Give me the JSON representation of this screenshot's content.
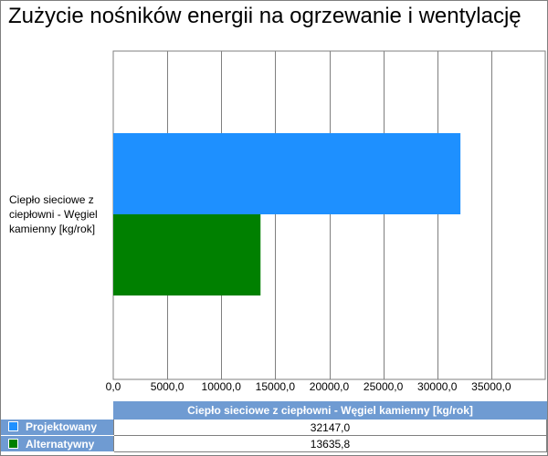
{
  "title": "Zużycie nośników energii na ogrzewanie i wentylację",
  "chart_data": {
    "type": "bar",
    "orientation": "horizontal",
    "title": "Zużycie nośników energii na ogrzewanie i wentylację",
    "categories": [
      "Ciepło sieciowe z ciepłowni - Węgiel kamienny [kg/rok]"
    ],
    "series": [
      {
        "name": "Projektowany",
        "values": [
          32147.0
        ],
        "color": "#1e90ff"
      },
      {
        "name": "Alternatywny",
        "values": [
          13635.8
        ],
        "color": "#008000"
      }
    ],
    "xlim": [
      0,
      40000
    ],
    "x_ticks": [
      "0,0",
      "5000,0",
      "10000,0",
      "15000,0",
      "20000,0",
      "25000,0",
      "30000,0",
      "35000,0"
    ],
    "grid": true,
    "legend": "data-table"
  },
  "table": {
    "column_header": "Ciepło sieciowe z ciepłowni - Węgiel kamienny [kg/rok]",
    "rows": [
      {
        "label": "Projektowany",
        "value": "32147,0",
        "color": "#1e90ff"
      },
      {
        "label": "Alternatywny",
        "value": "13635,8",
        "color": "#008000"
      }
    ]
  }
}
